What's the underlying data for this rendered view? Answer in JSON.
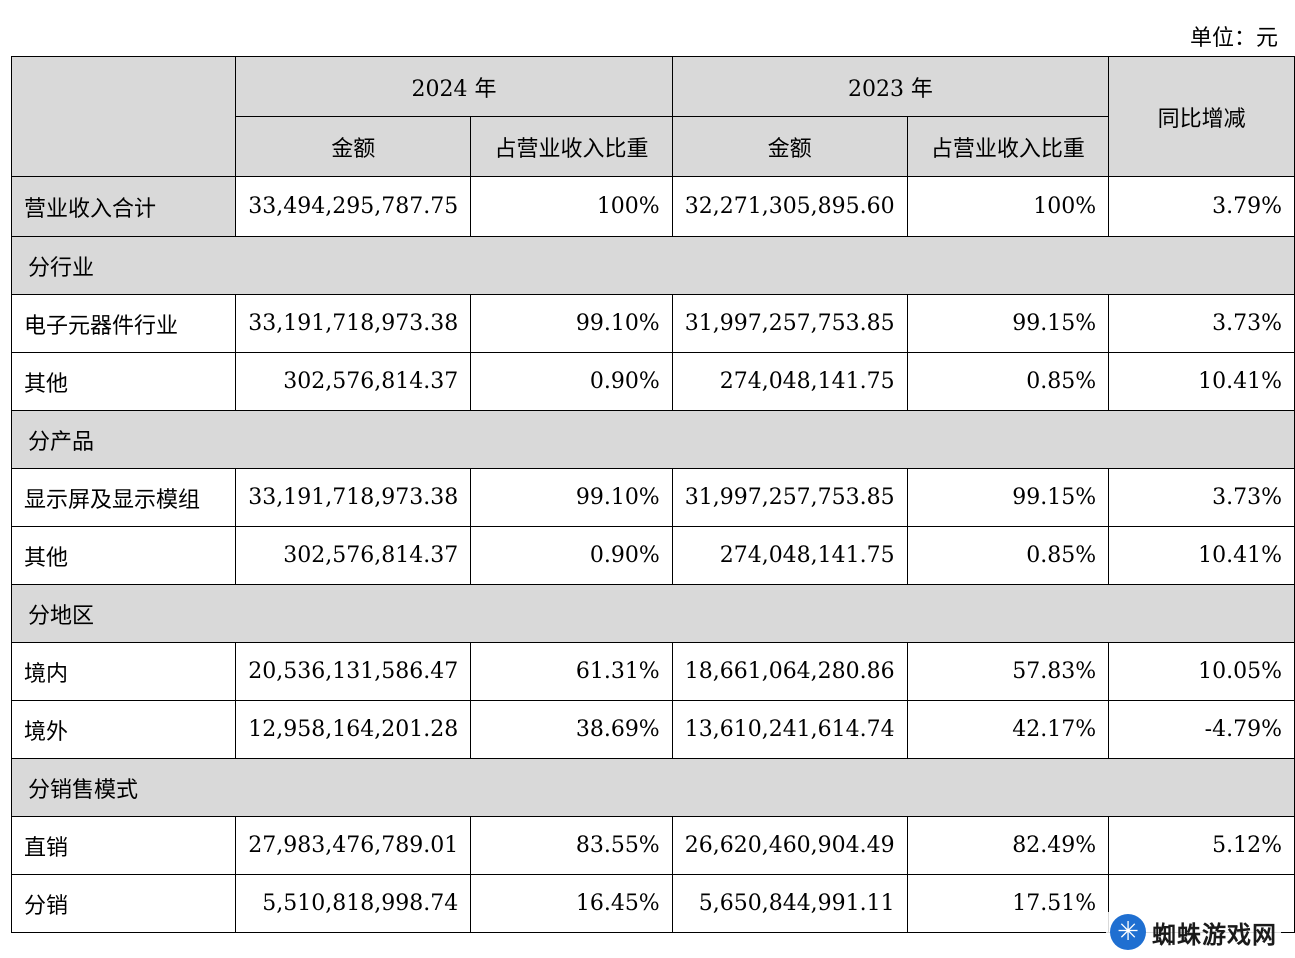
{
  "unit_label": "单位：元",
  "header": {
    "year_2024": "2024 年",
    "year_2023": "2023 年",
    "amount": "金额",
    "share": "占营业收入比重",
    "yoy": "同比增减"
  },
  "total": {
    "label": "营业收入合计",
    "amt_2024": "33,494,295,787.75",
    "pct_2024": "100%",
    "amt_2023": "32,271,305,895.60",
    "pct_2023": "100%",
    "yoy": "3.79%"
  },
  "sections": [
    {
      "title": "分行业",
      "rows": [
        {
          "label": "电子元器件行业",
          "amt_2024": "33,191,718,973.38",
          "pct_2024": "99.10%",
          "amt_2023": "31,997,257,753.85",
          "pct_2023": "99.15%",
          "yoy": "3.73%"
        },
        {
          "label": "其他",
          "amt_2024": "302,576,814.37",
          "pct_2024": "0.90%",
          "amt_2023": "274,048,141.75",
          "pct_2023": "0.85%",
          "yoy": "10.41%"
        }
      ]
    },
    {
      "title": "分产品",
      "rows": [
        {
          "label": "显示屏及显示模组",
          "amt_2024": "33,191,718,973.38",
          "pct_2024": "99.10%",
          "amt_2023": "31,997,257,753.85",
          "pct_2023": "99.15%",
          "yoy": "3.73%"
        },
        {
          "label": "其他",
          "amt_2024": "302,576,814.37",
          "pct_2024": "0.90%",
          "amt_2023": "274,048,141.75",
          "pct_2023": "0.85%",
          "yoy": "10.41%"
        }
      ]
    },
    {
      "title": "分地区",
      "rows": [
        {
          "label": "境内",
          "amt_2024": "20,536,131,586.47",
          "pct_2024": "61.31%",
          "amt_2023": "18,661,064,280.86",
          "pct_2023": "57.83%",
          "yoy": "10.05%"
        },
        {
          "label": "境外",
          "amt_2024": "12,958,164,201.28",
          "pct_2024": "38.69%",
          "amt_2023": "13,610,241,614.74",
          "pct_2023": "42.17%",
          "yoy": "-4.79%"
        }
      ]
    },
    {
      "title": "分销售模式",
      "rows": [
        {
          "label": "直销",
          "amt_2024": "27,983,476,789.01",
          "pct_2024": "83.55%",
          "amt_2023": "26,620,460,904.49",
          "pct_2023": "82.49%",
          "yoy": "5.12%"
        },
        {
          "label": "分销",
          "amt_2024": "5,510,818,998.74",
          "pct_2024": "16.45%",
          "amt_2023": "5,650,844,991.11",
          "pct_2023": "17.51%",
          "yoy": ""
        }
      ]
    }
  ],
  "watermark": {
    "text": "蜘蛛游戏网",
    "icon": "spider-snowflake-icon"
  }
}
